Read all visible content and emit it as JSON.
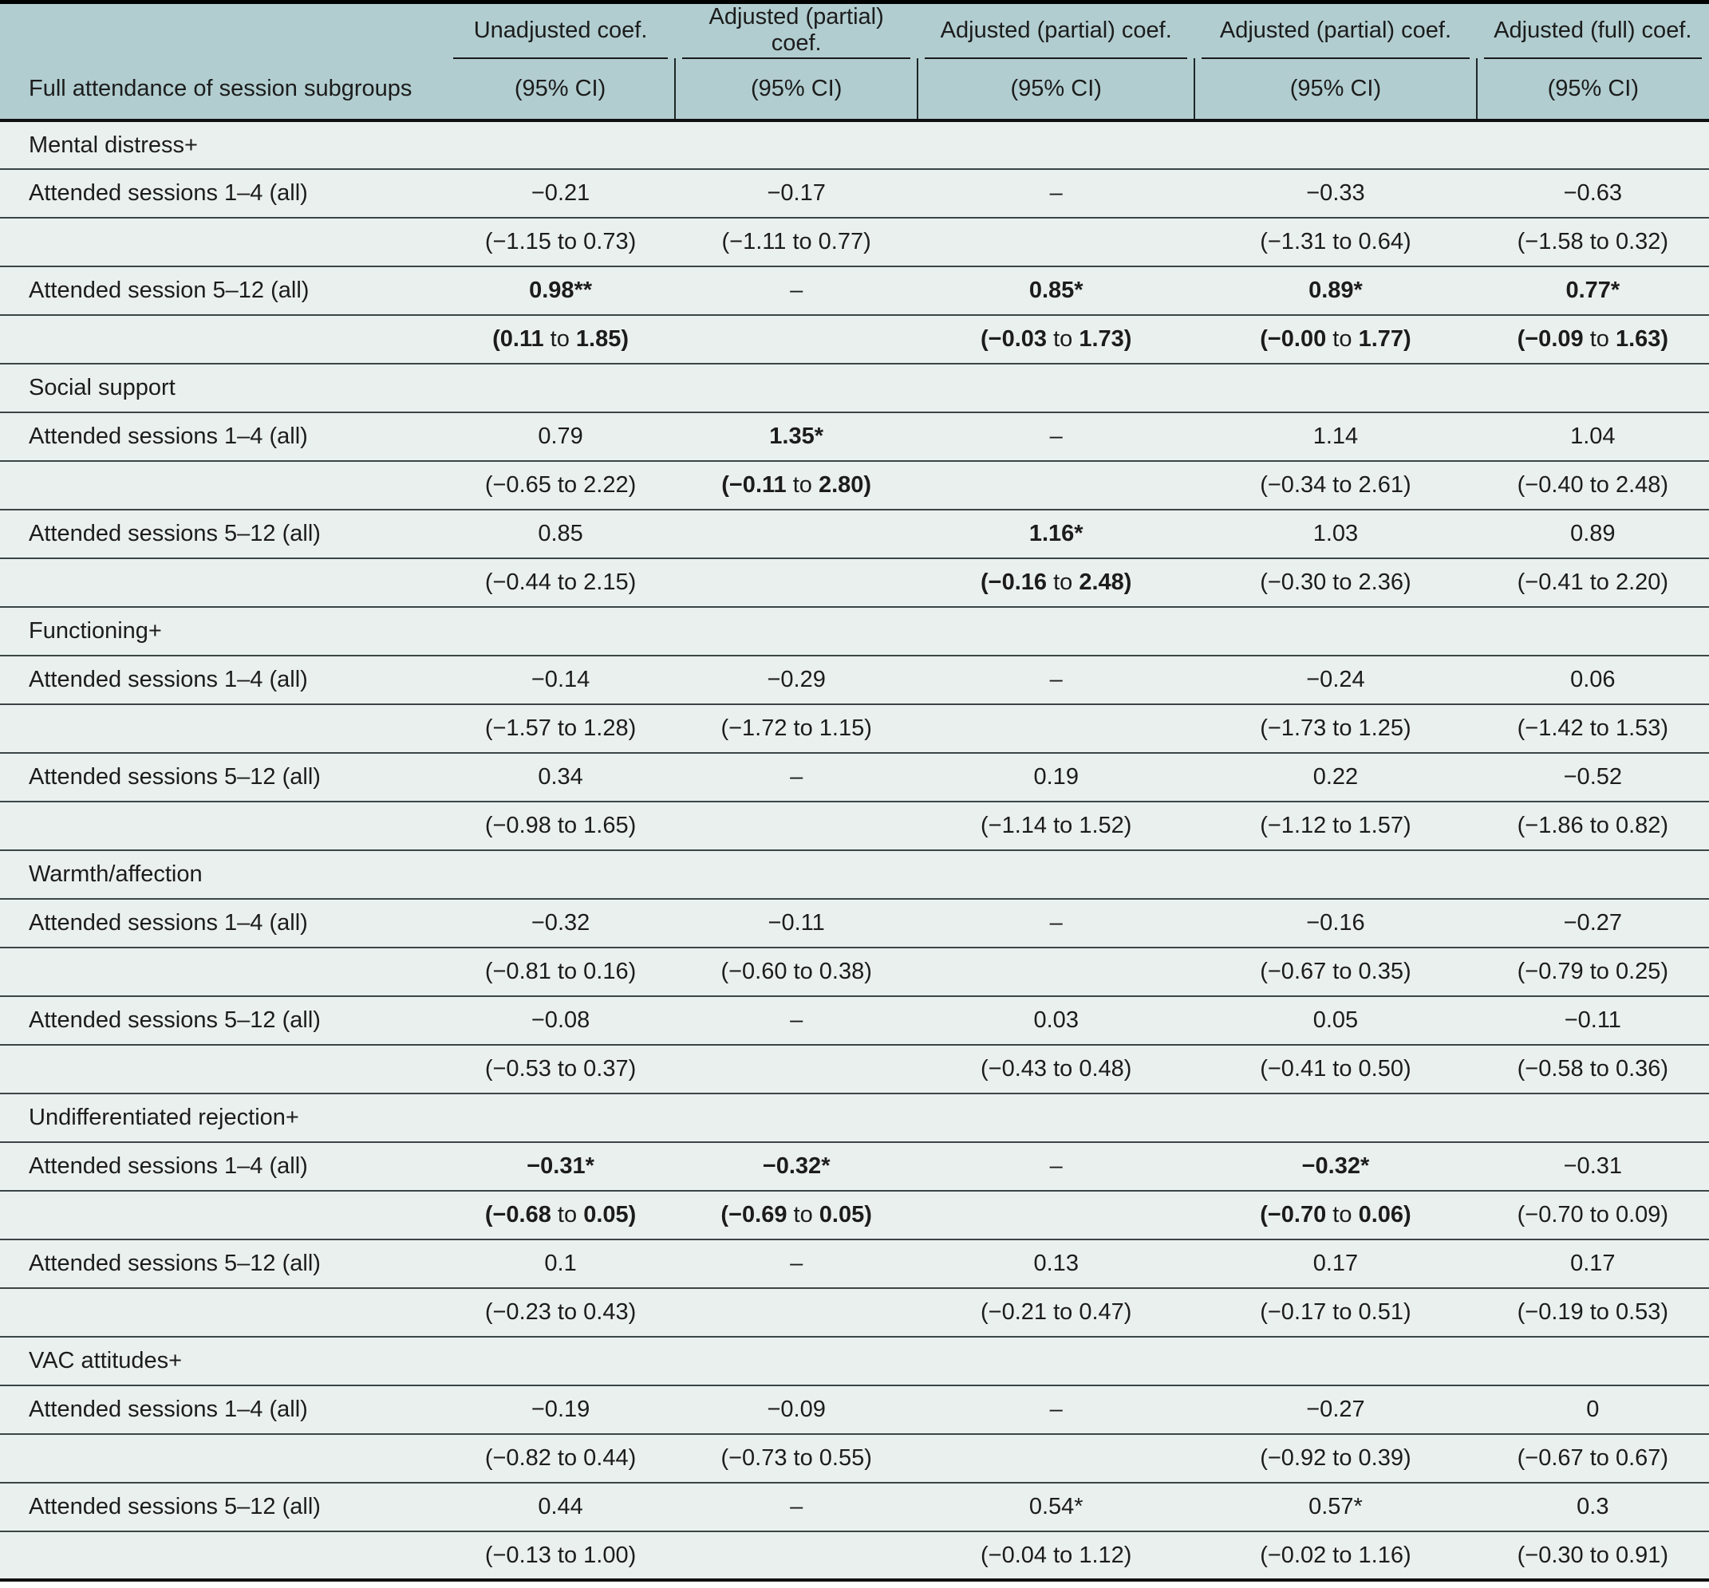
{
  "colors": {
    "header_bg": "#b1cdd0",
    "body_bg": "#eaf0ee",
    "rule_dark": "#101010",
    "rule_row": "#3b4545"
  },
  "header": {
    "row_label": "Full attendance of session subgroups",
    "columns": [
      {
        "line1": "Unadjusted coef.",
        "line2": "(95% CI)"
      },
      {
        "line1": "Adjusted (partial) coef.",
        "line2": "(95% CI)"
      },
      {
        "line1": "Adjusted (partial) coef.",
        "line2": "(95% CI)"
      },
      {
        "line1": "Adjusted (partial) coef.",
        "line2": "(95% CI)"
      },
      {
        "line1": "Adjusted (full) coef.",
        "line2": "(95% CI)"
      }
    ]
  },
  "sections": [
    {
      "title": "Mental distress+",
      "rows": [
        {
          "label": "Attended sessions 1–4 (all)",
          "coef": [
            {
              "text": "−0.21"
            },
            {
              "text": "−0.17"
            },
            {
              "text": "–"
            },
            {
              "text": "−0.33"
            },
            {
              "text": "−0.63"
            }
          ],
          "ci": [
            {
              "text": "(−1.15 to 0.73)"
            },
            {
              "text": "(−1.11 to 0.77)"
            },
            {
              "text": ""
            },
            {
              "text": "(−1.31 to 0.64)"
            },
            {
              "text": "(−1.58 to 0.32)"
            }
          ]
        },
        {
          "label": "Attended session 5–12 (all)",
          "coef": [
            {
              "text": "0.98**",
              "bold": true
            },
            {
              "text": "–"
            },
            {
              "text": "0.85*",
              "bold": true
            },
            {
              "text": "0.89*",
              "bold": true
            },
            {
              "text": "0.77*",
              "bold": true
            }
          ],
          "ci": [
            {
              "text": "(0.11 to 1.85)",
              "bold": true
            },
            {
              "text": ""
            },
            {
              "text": "(−0.03 to 1.73)",
              "bold": true
            },
            {
              "text": "(−0.00 to 1.77)",
              "bold": true
            },
            {
              "text": "(−0.09 to 1.63)",
              "bold": true
            }
          ]
        }
      ]
    },
    {
      "title": "Social support",
      "rows": [
        {
          "label": "Attended sessions 1–4 (all)",
          "coef": [
            {
              "text": "0.79"
            },
            {
              "text": "1.35*",
              "bold": true
            },
            {
              "text": "–"
            },
            {
              "text": "1.14"
            },
            {
              "text": "1.04"
            }
          ],
          "ci": [
            {
              "text": "(−0.65 to 2.22)"
            },
            {
              "text": "(−0.11 to 2.80)",
              "bold": true
            },
            {
              "text": ""
            },
            {
              "text": "(−0.34 to 2.61)"
            },
            {
              "text": "(−0.40 to 2.48)"
            }
          ]
        },
        {
          "label": "Attended sessions 5–12 (all)",
          "coef": [
            {
              "text": "0.85"
            },
            {
              "text": ""
            },
            {
              "text": "1.16*",
              "bold": true
            },
            {
              "text": "1.03"
            },
            {
              "text": "0.89"
            }
          ],
          "ci": [
            {
              "text": "(−0.44 to 2.15)"
            },
            {
              "text": ""
            },
            {
              "text": "(−0.16 to 2.48)",
              "bold": true
            },
            {
              "text": "(−0.30 to 2.36)"
            },
            {
              "text": "(−0.41 to 2.20)"
            }
          ]
        }
      ]
    },
    {
      "title": "Functioning+",
      "rows": [
        {
          "label": "Attended sessions 1–4 (all)",
          "coef": [
            {
              "text": "−0.14"
            },
            {
              "text": "−0.29"
            },
            {
              "text": "–"
            },
            {
              "text": "−0.24"
            },
            {
              "text": "0.06"
            }
          ],
          "ci": [
            {
              "text": "(−1.57 to 1.28)"
            },
            {
              "text": "(−1.72 to 1.15)"
            },
            {
              "text": ""
            },
            {
              "text": "(−1.73 to 1.25)"
            },
            {
              "text": "(−1.42 to 1.53)"
            }
          ]
        },
        {
          "label": "Attended sessions 5–12 (all)",
          "coef": [
            {
              "text": "0.34"
            },
            {
              "text": "–"
            },
            {
              "text": "0.19"
            },
            {
              "text": "0.22"
            },
            {
              "text": "−0.52"
            }
          ],
          "ci": [
            {
              "text": "(−0.98 to 1.65)"
            },
            {
              "text": ""
            },
            {
              "text": "(−1.14 to 1.52)"
            },
            {
              "text": "(−1.12 to 1.57)"
            },
            {
              "text": "(−1.86 to 0.82)"
            }
          ]
        }
      ]
    },
    {
      "title": "Warmth/affection",
      "rows": [
        {
          "label": "Attended sessions 1–4 (all)",
          "coef": [
            {
              "text": "−0.32"
            },
            {
              "text": "−0.11"
            },
            {
              "text": "–"
            },
            {
              "text": "−0.16"
            },
            {
              "text": "−0.27"
            }
          ],
          "ci": [
            {
              "text": "(−0.81 to 0.16)"
            },
            {
              "text": "(−0.60 to 0.38)"
            },
            {
              "text": ""
            },
            {
              "text": "(−0.67 to 0.35)"
            },
            {
              "text": "(−0.79 to 0.25)"
            }
          ]
        },
        {
          "label": "Attended sessions 5–12 (all)",
          "coef": [
            {
              "text": "−0.08"
            },
            {
              "text": "–"
            },
            {
              "text": "0.03"
            },
            {
              "text": "0.05"
            },
            {
              "text": "−0.11"
            }
          ],
          "ci": [
            {
              "text": "(−0.53 to 0.37)"
            },
            {
              "text": ""
            },
            {
              "text": "(−0.43 to 0.48)"
            },
            {
              "text": "(−0.41 to 0.50)"
            },
            {
              "text": "(−0.58 to 0.36)"
            }
          ]
        }
      ]
    },
    {
      "title": "Undifferentiated rejection+",
      "rows": [
        {
          "label": "Attended sessions 1–4 (all)",
          "coef": [
            {
              "text": "−0.31*",
              "bold": true
            },
            {
              "text": "−0.32*",
              "bold": true
            },
            {
              "text": "–"
            },
            {
              "text": "−0.32*",
              "bold": true
            },
            {
              "text": "−0.31"
            }
          ],
          "ci": [
            {
              "text": "(−0.68 to 0.05)",
              "bold": true
            },
            {
              "text": "(−0.69 to 0.05)",
              "bold": true
            },
            {
              "text": ""
            },
            {
              "text": "(−0.70 to 0.06)",
              "bold": true
            },
            {
              "text": "(−0.70 to 0.09)"
            }
          ]
        },
        {
          "label": "Attended sessions 5–12 (all)",
          "coef": [
            {
              "text": "0.1"
            },
            {
              "text": "–"
            },
            {
              "text": "0.13"
            },
            {
              "text": "0.17"
            },
            {
              "text": "0.17"
            }
          ],
          "ci": [
            {
              "text": "(−0.23 to 0.43)"
            },
            {
              "text": ""
            },
            {
              "text": "(−0.21 to 0.47)"
            },
            {
              "text": "(−0.17 to 0.51)"
            },
            {
              "text": "(−0.19 to 0.53)"
            }
          ]
        }
      ]
    },
    {
      "title": "VAC attitudes+",
      "rows": [
        {
          "label": "Attended sessions 1–4 (all)",
          "coef": [
            {
              "text": "−0.19"
            },
            {
              "text": "−0.09"
            },
            {
              "text": "–"
            },
            {
              "text": "−0.27"
            },
            {
              "text": "0"
            }
          ],
          "ci": [
            {
              "text": "(−0.82 to 0.44)"
            },
            {
              "text": "(−0.73 to 0.55)"
            },
            {
              "text": ""
            },
            {
              "text": "(−0.92 to 0.39)"
            },
            {
              "text": "(−0.67 to 0.67)"
            }
          ]
        },
        {
          "label": "Attended sessions 5–12 (all)",
          "coef": [
            {
              "text": "0.44"
            },
            {
              "text": "–"
            },
            {
              "text": "0.54*"
            },
            {
              "text": "0.57*"
            },
            {
              "text": "0.3"
            }
          ],
          "ci": [
            {
              "text": "(−0.13 to 1.00)"
            },
            {
              "text": ""
            },
            {
              "text": "(−0.04 to 1.12)"
            },
            {
              "text": "(−0.02 to 1.16)"
            },
            {
              "text": "(−0.30 to 0.91)"
            }
          ]
        }
      ]
    }
  ]
}
